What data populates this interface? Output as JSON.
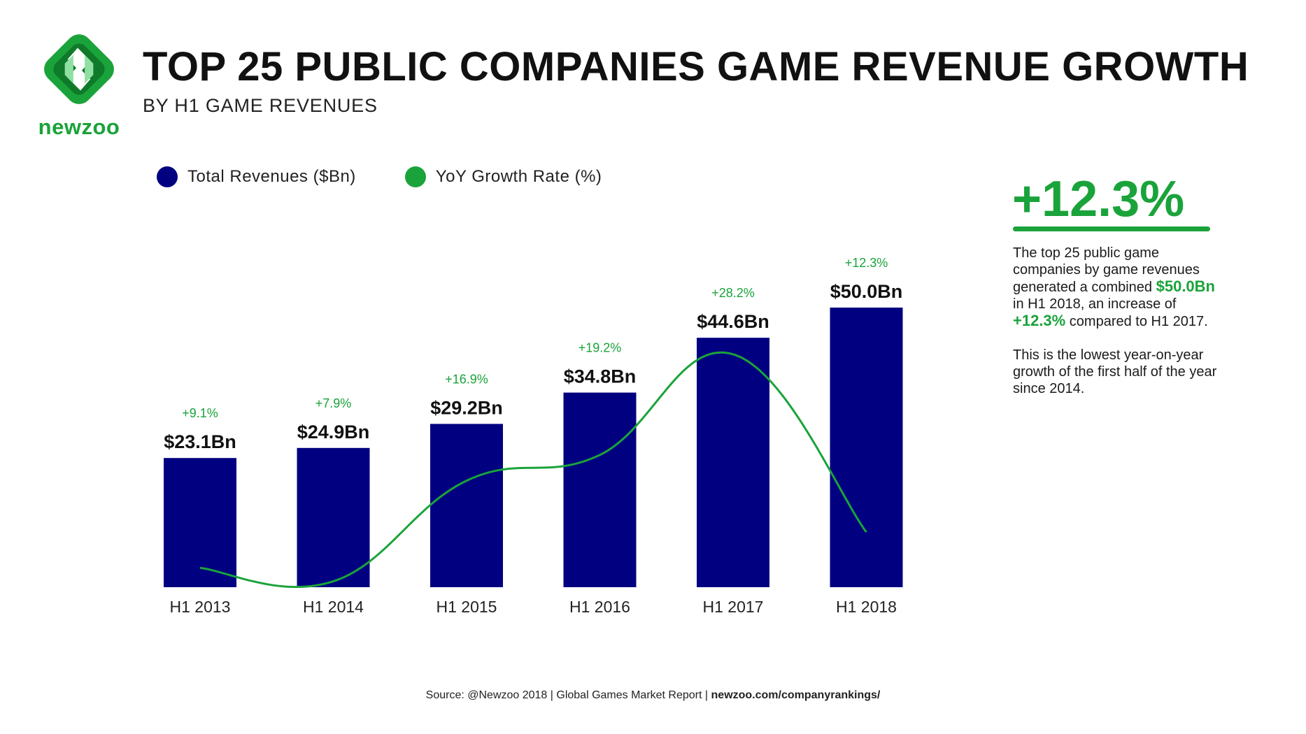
{
  "brand": {
    "name": "newzoo",
    "accent_color": "#1aa33a",
    "primary_color": "#000080",
    "logo_icon": "newzoo-logo-icon"
  },
  "header": {
    "title": "TOP 25 PUBLIC COMPANIES GAME REVENUE GROWTH",
    "subtitle": "BY H1 GAME REVENUES"
  },
  "legend": [
    {
      "label": "Total Revenues ($Bn)",
      "color": "#000080"
    },
    {
      "label": "YoY Growth Rate (%)",
      "color": "#1aa33a"
    }
  ],
  "chart_data": {
    "type": "bar",
    "categories": [
      "H1 2013",
      "H1 2014",
      "H1 2015",
      "H1 2016",
      "H1 2017",
      "H1 2018"
    ],
    "series": [
      {
        "name": "Total Revenues ($Bn)",
        "type": "bar",
        "color": "#000080",
        "values": [
          23.1,
          24.9,
          29.2,
          34.8,
          44.6,
          50.0
        ],
        "labels": [
          "$23.1Bn",
          "$24.9Bn",
          "$29.2Bn",
          "$34.8Bn",
          "$44.6Bn",
          "$50.0Bn"
        ]
      },
      {
        "name": "YoY Growth Rate (%)",
        "type": "line",
        "color": "#1aa33a",
        "values": [
          9.1,
          7.9,
          16.9,
          19.2,
          28.2,
          12.3
        ],
        "labels": [
          "+9.1%",
          "+7.9%",
          "+16.9%",
          "+19.2%",
          "+28.2%",
          "+12.3%"
        ]
      }
    ],
    "ylim": [
      0,
      50
    ],
    "grid": false,
    "legend_position": "top-left"
  },
  "callout": {
    "headline": "+12.3%",
    "p1_a": "The top 25 public game companies by game revenues generated a combined",
    "p1_hl1": "$50.0Bn",
    "p1_b": "in H1 2018, an increase of",
    "p1_hl2": "+12.3%",
    "p1_c": "compared to H1 2017.",
    "p2": "This is the lowest year-on-year growth of the first half of the year since 2014."
  },
  "footer": {
    "source_prefix": "Source: @Newzoo 2018 | Global Games Market Report |",
    "source_link": "newzoo.com/companyrankings/"
  }
}
